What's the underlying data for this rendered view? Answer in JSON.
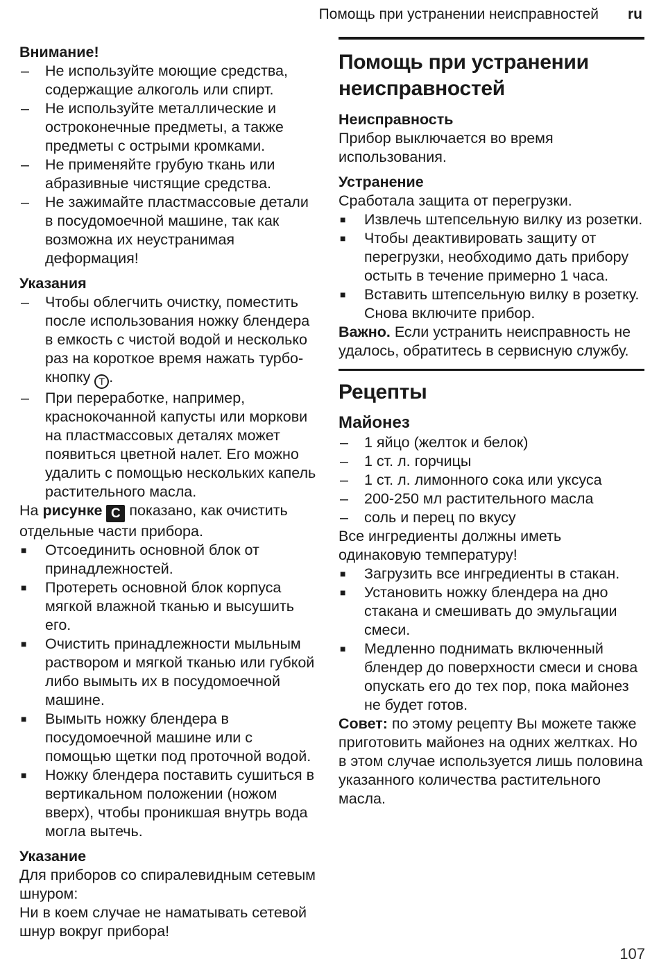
{
  "colors": {
    "text": "#1a1a1a",
    "rule": "#181818",
    "badge_bg": "#1a1a1a",
    "badge_fg": "#ffffff"
  },
  "header": {
    "title": "Помощь при устранении неисправностей",
    "lang": "ru"
  },
  "page_number": "107",
  "left_column": {
    "attention": {
      "heading": "Внимание!",
      "items": [
        "Не используйте моющие средства, содержащие алкоголь или спирт.",
        "Не используйте металлические и остроконечные предметы, а также предметы с острыми кромками.",
        "Не применяйте грубую ткань или абразивные чистящие средства.",
        "Не зажимайте пластмассовые детали в посудомоечной машине, так как возможна их неустранимая деформация!"
      ]
    },
    "notes": {
      "heading": "Указания",
      "items": [
        {
          "pre": "Чтобы облегчить очистку, поместить после использования ножку блендера в емкость с чистой водой и несколько раз на короткое время нажать турбо-кнопку ",
          "icon": "T",
          "post": "."
        },
        "При переработке, например, краснокочанной капусты или моркови на пластмассовых деталях может появиться цветной налет. Его можно удалить с помощью нескольких капель растительного масла."
      ]
    },
    "figure_paragraph": {
      "prefix": "На ",
      "bold_word": "рисунке",
      "badge": "C",
      "suffix": "показано, как очистить отдельные части прибора."
    },
    "cleaning_steps": [
      "Отсоединить основной блок от принадлежностей.",
      "Протереть основной блок корпуса мягкой влажной тканью и высушить его.",
      "Очистить принадлежности мыльным раствором и мягкой тканью или губкой либо вымыть их в посудомоечной машине.",
      "Вымыть ножку блендера в посудомоечной машине или с помощью щетки под проточной водой.",
      "Ножку блендера поставить сушиться в вертикальном положении (ножом вверх), чтобы проникшая внутрь вода могла вытечь."
    ],
    "note": {
      "heading": "Указание",
      "body": [
        "Для приборов со спиралевидным сетевым шнуром:",
        "Ни в коем случае не наматывать сетевой шнур вокруг прибора!"
      ]
    }
  },
  "right_column": {
    "troubleshooting": {
      "title": "Помощь при устранении неисправностей",
      "fault_heading": "Неисправность",
      "fault_text": "Прибор выключается во время использования.",
      "remedy_heading": "Устранение",
      "remedy_intro": "Сработала защита от перегрузки.",
      "remedy_steps": [
        "Извлечь штепсельную вилку из розетки.",
        "Чтобы деактивировать защиту от перегрузки, необходимо дать прибору остыть в течение примерно 1 часа.",
        "Вставить штепсельную вилку в розетку. Снова включите прибор."
      ],
      "important_label": "Важно.",
      "important_text": "Если устранить неисправность не удалось, обратитесь в сервисную службу."
    },
    "recipes": {
      "title": "Рецепты",
      "mayonnaise": {
        "title": "Майонез",
        "ingredients": [
          "1 яйцо (желток и белок)",
          "1 ст. л. горчицы",
          "1 ст. л. лимонного сока или уксуса",
          "200-250 мл растительного масла",
          "соль и перец по вкусу"
        ],
        "note": "Все ингредиенты должны иметь одинаковую температуру!",
        "steps": [
          "Загрузить все ингредиенты в стакан.",
          "Установить ножку блендера на дно стакана и смешивать до эмульгации смеси.",
          "Медленно поднимать включенный блендер до поверхности смеси и снова опускать его до тех пор, пока майонез не будет готов."
        ],
        "tip_label": "Совет:",
        "tip_text": "по этому рецепту Вы можете также приготовить майонез на одних желтках. Но в этом случае используется лишь половина указанного количества растительного масла."
      }
    }
  }
}
